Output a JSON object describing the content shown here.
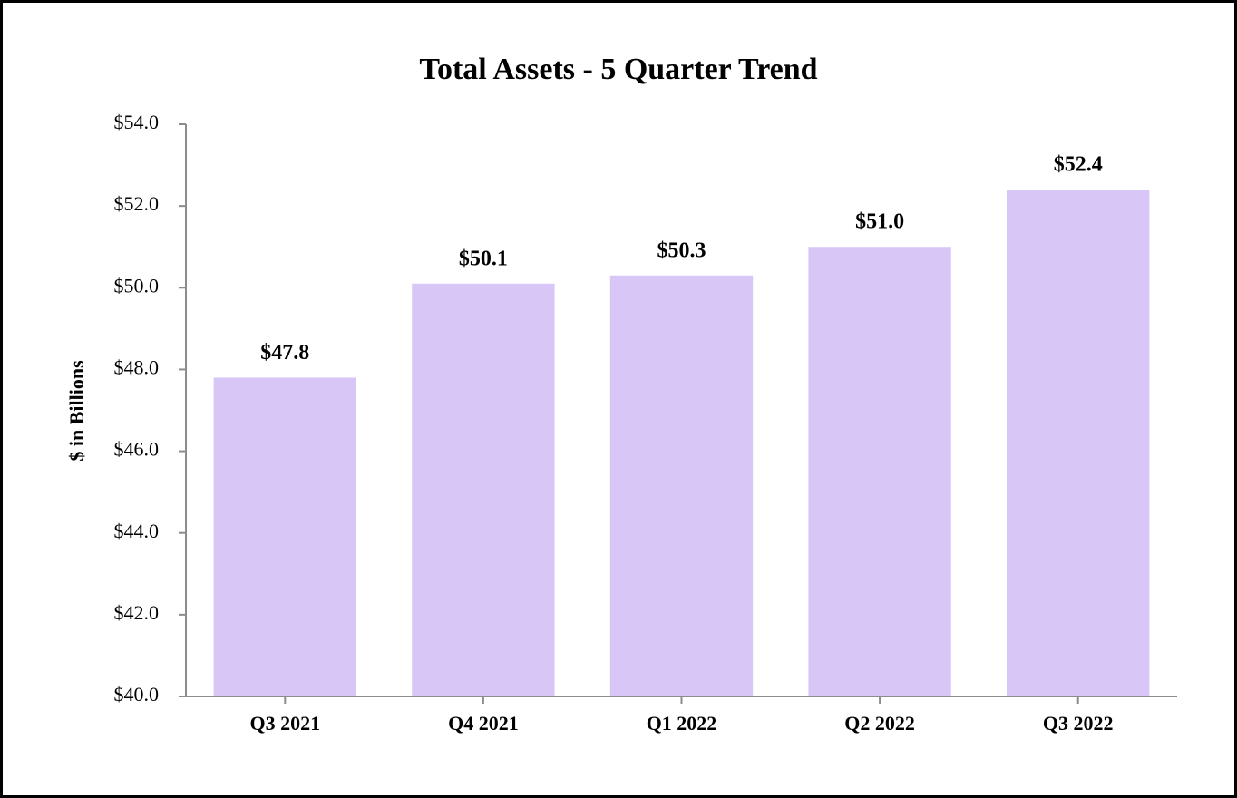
{
  "chart_data": {
    "type": "bar",
    "title": "Total Assets - 5 Quarter Trend",
    "y_label": "$ in Billions",
    "categories": [
      "Q3 2021",
      "Q4 2021",
      "Q1 2022",
      "Q2 2022",
      "Q3 2022"
    ],
    "values": [
      47.8,
      50.1,
      50.3,
      51.0,
      52.4
    ],
    "value_labels": [
      "$47.8",
      "$50.1",
      "$50.3",
      "$51.0",
      "$52.4"
    ],
    "color": "#d8c6f7",
    "ylim": [
      40,
      54
    ],
    "yticks": [
      {
        "value": 40,
        "label": "$40.0"
      },
      {
        "value": 42,
        "label": "$42.0"
      },
      {
        "value": 44,
        "label": "$44.0"
      },
      {
        "value": 46,
        "label": "$46.0"
      },
      {
        "value": 48,
        "label": "$48.0"
      },
      {
        "value": 50,
        "label": "$50.0"
      },
      {
        "value": 52,
        "label": "$52.0"
      },
      {
        "value": 54,
        "label": "$54.0"
      }
    ],
    "grid": false
  }
}
